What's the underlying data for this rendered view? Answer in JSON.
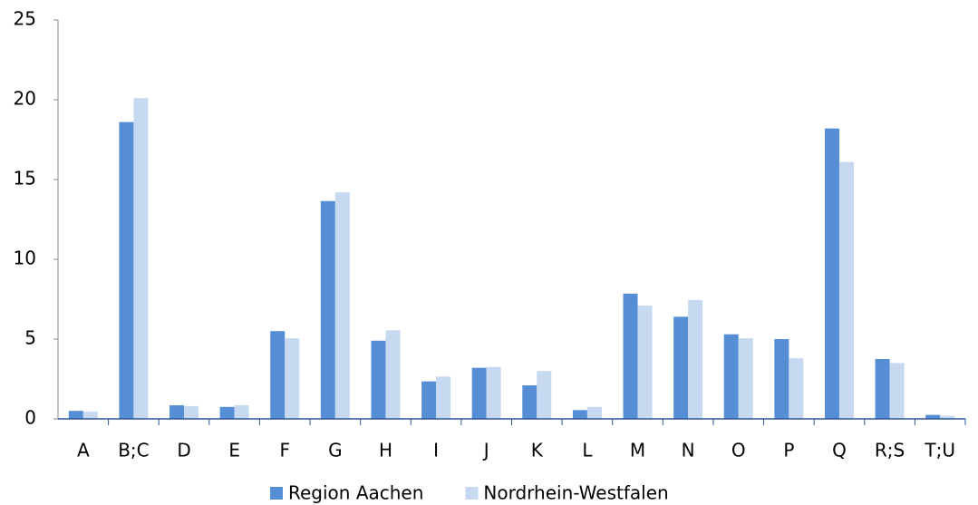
{
  "chart_data": {
    "type": "bar",
    "categories": [
      "A",
      "B;C",
      "D",
      "E",
      "F",
      "G",
      "H",
      "I",
      "J",
      "K",
      "L",
      "M",
      "N",
      "O",
      "P",
      "Q",
      "R;S",
      "T;U"
    ],
    "series": [
      {
        "name": "Region Aachen",
        "color": "#558ed5",
        "values": [
          0.5,
          18.6,
          0.85,
          0.75,
          5.5,
          13.65,
          4.9,
          2.35,
          3.2,
          2.1,
          0.55,
          7.85,
          6.4,
          5.3,
          5.0,
          18.2,
          3.75,
          0.25
        ]
      },
      {
        "name": "Nordrhein-Westfalen",
        "color": "#c6d9f1",
        "values": [
          0.45,
          20.1,
          0.8,
          0.85,
          5.05,
          14.2,
          5.55,
          2.65,
          3.25,
          3.0,
          0.75,
          7.1,
          7.45,
          5.05,
          3.8,
          16.1,
          3.5,
          0.2
        ]
      }
    ],
    "ylim": [
      0,
      25
    ],
    "yticks": [
      0,
      5,
      10,
      15,
      20,
      25
    ],
    "grid": false,
    "legend": "bottom"
  }
}
